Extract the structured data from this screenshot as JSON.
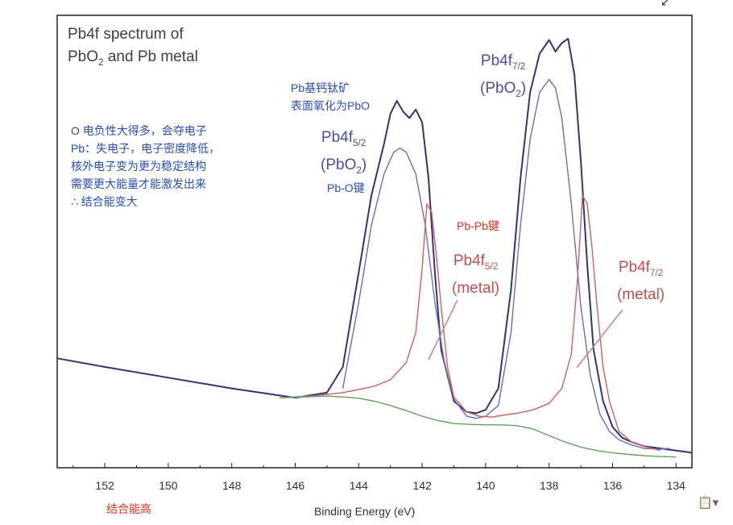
{
  "chart_data": {
    "type": "line",
    "title_lines": [
      "Pb4f spectrum of",
      "PbO2 and Pb metal"
    ],
    "xlabel": "Binding Energy (eV)",
    "ylabel": "",
    "xlim": [
      153.5,
      133.5
    ],
    "ylim": [
      0,
      1.0
    ],
    "x_reversed": true,
    "grid": false,
    "x_ticks": [
      152,
      150,
      148,
      146,
      144,
      142,
      140,
      138,
      136,
      134
    ],
    "series": [
      {
        "color": "#33337a",
        "x": [
          153.5,
          152,
          150,
          148,
          146,
          145,
          144.5,
          144,
          143.6,
          143.2,
          143.0,
          142.8,
          142.6,
          142.4,
          142.2,
          142.0,
          141.8,
          141.6,
          141.4,
          141.0,
          140.6,
          140.3,
          140.0,
          139.6,
          139.2,
          138.9,
          138.6,
          138.3,
          138.0,
          137.8,
          137.6,
          137.4,
          137.2,
          137.0,
          136.8,
          136.6,
          136.3,
          136.0,
          135.7,
          135.4,
          135.0,
          134.5,
          133.5
        ],
        "y": [
          0.24,
          0.22,
          0.195,
          0.17,
          0.148,
          0.16,
          0.22,
          0.44,
          0.62,
          0.74,
          0.81,
          0.84,
          0.815,
          0.8,
          0.82,
          0.79,
          0.66,
          0.44,
          0.26,
          0.14,
          0.115,
          0.112,
          0.12,
          0.17,
          0.4,
          0.66,
          0.86,
          0.95,
          0.982,
          0.955,
          0.975,
          0.985,
          0.9,
          0.7,
          0.46,
          0.26,
          0.14,
          0.08,
          0.055,
          0.045,
          0.035,
          0.03,
          0.02
        ]
      },
      {
        "color": "#6a6fb0",
        "x": [
          144.5,
          144.0,
          143.6,
          143.2,
          142.9,
          142.7,
          142.5,
          142.2,
          141.9,
          141.6,
          141.3,
          141.0,
          140.6,
          140.3,
          140.0,
          139.6,
          139.2,
          138.9,
          138.6,
          138.3,
          138.0,
          137.8,
          137.6,
          137.3,
          137.0,
          136.7,
          136.4,
          136.1,
          135.8,
          135.4,
          135.0,
          134.5,
          134.2
        ],
        "y": [
          0.17,
          0.37,
          0.55,
          0.67,
          0.72,
          0.73,
          0.72,
          0.67,
          0.55,
          0.37,
          0.23,
          0.145,
          0.105,
          0.1,
          0.105,
          0.13,
          0.3,
          0.55,
          0.75,
          0.86,
          0.89,
          0.87,
          0.8,
          0.6,
          0.36,
          0.2,
          0.11,
          0.07,
          0.05,
          0.038,
          0.03,
          0.028,
          0.03
        ]
      },
      {
        "color": "#d06060",
        "x": [
          146.5,
          145.5,
          144.5,
          143.5,
          143.0,
          142.5,
          142.2,
          142.0,
          141.85,
          141.7,
          141.55,
          141.4,
          141.2,
          141.0,
          140.6,
          140.2,
          139.8,
          139.4,
          139.0,
          138.5,
          138.0,
          137.6,
          137.3,
          137.1,
          136.95,
          136.8,
          136.65,
          136.5,
          136.3,
          136.1,
          135.8,
          135.4,
          135.0,
          134.5
        ],
        "y": [
          0.148,
          0.152,
          0.16,
          0.175,
          0.19,
          0.23,
          0.3,
          0.45,
          0.6,
          0.58,
          0.48,
          0.36,
          0.22,
          0.15,
          0.115,
          0.105,
          0.103,
          0.108,
          0.112,
          0.12,
          0.135,
          0.17,
          0.25,
          0.43,
          0.62,
          0.6,
          0.5,
          0.37,
          0.22,
          0.14,
          0.07,
          0.045,
          0.035,
          0.025
        ]
      },
      {
        "color": "#60a060",
        "x": [
          146.5,
          146.0,
          145.0,
          144.5,
          144.0,
          143.5,
          143.0,
          142.5,
          142.0,
          141.5,
          141.0,
          140.5,
          140.0,
          139.5,
          139.0,
          138.5,
          138.0,
          137.5,
          137.0,
          136.5,
          136.0,
          135.5,
          135.0,
          134.5,
          134.0
        ],
        "y": [
          0.148,
          0.149,
          0.152,
          0.15,
          0.147,
          0.14,
          0.13,
          0.118,
          0.105,
          0.095,
          0.088,
          0.086,
          0.085,
          0.085,
          0.083,
          0.075,
          0.06,
          0.045,
          0.033,
          0.025,
          0.02,
          0.016,
          0.013,
          0.011,
          0.01
        ]
      }
    ]
  },
  "annotations": {
    "blue_note_lines": [
      "O 电负性大得多，会夺电子",
      "Pb：失电子，电子密度降低，",
      "核外电子变为更为稳定结构",
      "需要更大能量才能激发出来",
      "∴ 结合能变大"
    ],
    "perovskite_lines": [
      "Pb基钙钛矿",
      "表面氧化为PbO"
    ],
    "peak_pbo2_left": {
      "element": "Pb4f",
      "subscript": "5/2",
      "compound": "(PbO",
      "compound_sub": "2",
      "close": ")"
    },
    "peak_pbo2_right": {
      "element": "Pb4f",
      "subscript": "7/2",
      "compound": "(PbO",
      "compound_sub": "2",
      "close": ")"
    },
    "peak_metal_left": {
      "element": "Pb4f",
      "subscript": "5/2",
      "second_line": "(metal)"
    },
    "peak_metal_right": {
      "element": "Pb4f",
      "subscript": "7/2",
      "second_line": "(metal)"
    },
    "pb_o_bond": "Pb-O键",
    "pb_pb_bond": "Pb-Pb键",
    "binding_energy_high": "结合能高"
  },
  "ui": {
    "paste_options_icon": "paste-options-icon",
    "corner_icon": "corner-mark-icon"
  }
}
